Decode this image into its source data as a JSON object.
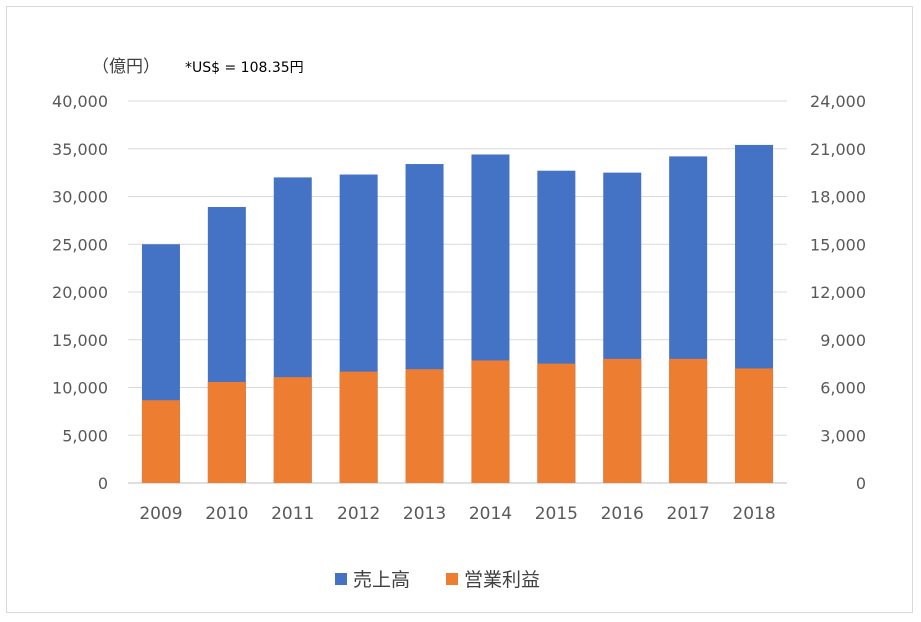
{
  "chart_data": {
    "type": "bar",
    "unit_label": "（億円）",
    "rate_note": "*US$ = 108.35円",
    "categories": [
      "2009",
      "2010",
      "2011",
      "2012",
      "2013",
      "2014",
      "2015",
      "2016",
      "2017",
      "2018"
    ],
    "series": [
      {
        "name": "売上高",
        "axis": "left",
        "color": "#4472C4",
        "values": [
          25000,
          28900,
          32000,
          32300,
          33400,
          34400,
          32700,
          32500,
          34200,
          35400
        ]
      },
      {
        "name": "営業利益",
        "axis": "right",
        "color": "#ED7D31",
        "values": [
          5200,
          6350,
          6650,
          7000,
          7150,
          7700,
          7500,
          7800,
          7800,
          7200
        ]
      }
    ],
    "left_axis": {
      "min": 0,
      "max": 40000,
      "ticks": [
        "0",
        "5,000",
        "10,000",
        "15,000",
        "20,000",
        "25,000",
        "30,000",
        "35,000",
        "40,000"
      ]
    },
    "right_axis": {
      "min": 0,
      "max": 24000,
      "ticks": [
        "0",
        "3,000",
        "6,000",
        "9,000",
        "12,000",
        "15,000",
        "18,000",
        "21,000",
        "24,000"
      ]
    },
    "grid": true,
    "legend_position": "bottom"
  }
}
